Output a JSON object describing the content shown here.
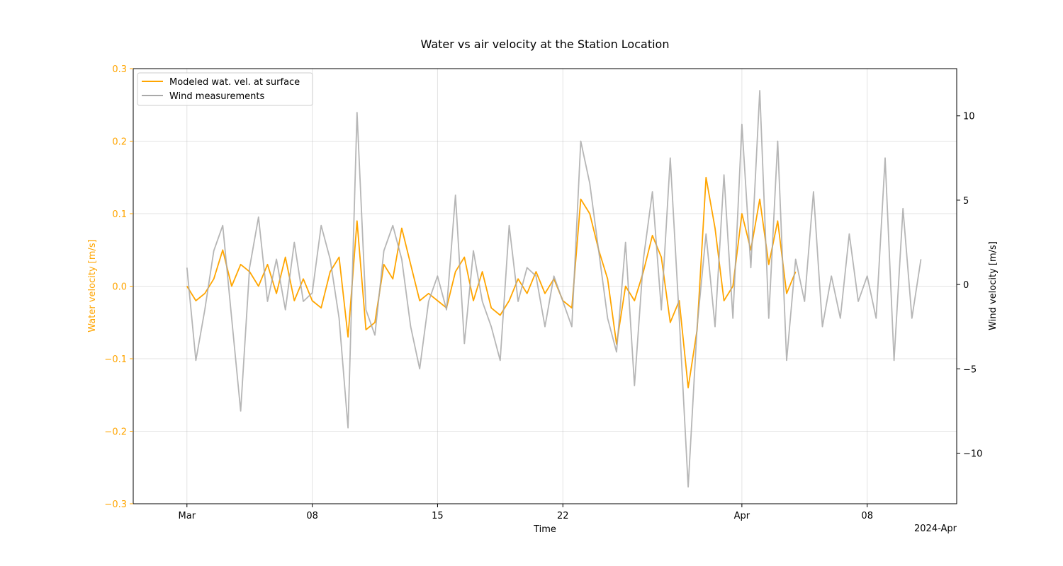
{
  "chart_data": {
    "type": "line",
    "title": "Water vs air velocity at the Station Location",
    "xlabel": "Time",
    "x_offset_label": "2024-Apr",
    "x_ticks": [
      {
        "date": "2024-03-01",
        "label": "Mar"
      },
      {
        "date": "2024-03-08",
        "label": "08"
      },
      {
        "date": "2024-03-15",
        "label": "15"
      },
      {
        "date": "2024-03-22",
        "label": "22"
      },
      {
        "date": "2024-04-01",
        "label": "Apr"
      },
      {
        "date": "2024-04-08",
        "label": "08"
      }
    ],
    "xlim": [
      "2024-02-27",
      "2024-04-13"
    ],
    "grid": true,
    "legend_position": "upper left",
    "y_left": {
      "label": "Water velocity [m/s]",
      "ylim": [
        -0.3,
        0.3
      ],
      "ticks": [
        -0.3,
        -0.2,
        -0.1,
        0.0,
        0.1,
        0.2,
        0.3
      ],
      "tick_labels": [
        "−0.3",
        "−0.2",
        "−0.1",
        "0.0",
        "0.1",
        "0.2",
        "0.3"
      ],
      "color": "#ffa500"
    },
    "y_right": {
      "label": "Wind velocity [m/s]",
      "ylim": [
        -13.0,
        12.8
      ],
      "ticks": [
        -10,
        -5,
        0,
        5,
        10
      ],
      "tick_labels": [
        "−10",
        "−5",
        "0",
        "5",
        "10"
      ],
      "color": "#000000"
    },
    "series": [
      {
        "name": "Modeled wat. vel. at surface",
        "axis": "left",
        "color": "#ffa500",
        "x": [
          "2024-03-01",
          "2024-03-01T12:00",
          "2024-03-02",
          "2024-03-02T12:00",
          "2024-03-03",
          "2024-03-03T12:00",
          "2024-03-04",
          "2024-03-04T12:00",
          "2024-03-05",
          "2024-03-05T12:00",
          "2024-03-06",
          "2024-03-06T12:00",
          "2024-03-07",
          "2024-03-07T12:00",
          "2024-03-08",
          "2024-03-08T12:00",
          "2024-03-09",
          "2024-03-09T12:00",
          "2024-03-10",
          "2024-03-10T12:00",
          "2024-03-11",
          "2024-03-11T12:00",
          "2024-03-12",
          "2024-03-12T12:00",
          "2024-03-13",
          "2024-03-13T12:00",
          "2024-03-14",
          "2024-03-14T12:00",
          "2024-03-15",
          "2024-03-15T12:00",
          "2024-03-16",
          "2024-03-16T12:00",
          "2024-03-17",
          "2024-03-17T12:00",
          "2024-03-18",
          "2024-03-18T12:00",
          "2024-03-19",
          "2024-03-19T12:00",
          "2024-03-20",
          "2024-03-20T12:00",
          "2024-03-21",
          "2024-03-21T12:00",
          "2024-03-22",
          "2024-03-22T12:00",
          "2024-03-23",
          "2024-03-23T12:00",
          "2024-03-24",
          "2024-03-24T12:00",
          "2024-03-25",
          "2024-03-25T12:00",
          "2024-03-26",
          "2024-03-26T12:00",
          "2024-03-27",
          "2024-03-27T12:00",
          "2024-03-28",
          "2024-03-28T12:00",
          "2024-03-29",
          "2024-03-29T12:00",
          "2024-03-30",
          "2024-03-30T12:00",
          "2024-03-31",
          "2024-03-31T12:00",
          "2024-04-01",
          "2024-04-01T12:00",
          "2024-04-02",
          "2024-04-02T12:00",
          "2024-04-03",
          "2024-04-03T12:00",
          "2024-04-04"
        ],
        "y": [
          0.0,
          -0.02,
          -0.01,
          0.01,
          0.05,
          0.0,
          0.03,
          0.02,
          0.0,
          0.03,
          -0.01,
          0.04,
          -0.02,
          0.01,
          -0.02,
          -0.03,
          0.02,
          0.04,
          -0.07,
          0.09,
          -0.06,
          -0.05,
          0.03,
          0.01,
          0.08,
          0.03,
          -0.02,
          -0.01,
          -0.02,
          -0.03,
          0.02,
          0.04,
          -0.02,
          0.02,
          -0.03,
          -0.04,
          -0.02,
          0.01,
          -0.01,
          0.02,
          -0.01,
          0.01,
          -0.02,
          -0.03,
          0.12,
          0.1,
          0.05,
          0.01,
          -0.08,
          0.0,
          -0.02,
          0.02,
          0.07,
          0.04,
          -0.05,
          -0.02,
          -0.14,
          -0.06,
          0.15,
          0.08,
          -0.02,
          0.0,
          0.1,
          0.05,
          0.12,
          0.03,
          0.09,
          -0.01,
          0.02
        ]
      },
      {
        "name": "Wind measurements",
        "axis": "right",
        "color": "#a9a9a9",
        "x": [
          "2024-03-01",
          "2024-03-01T12:00",
          "2024-03-02",
          "2024-03-02T12:00",
          "2024-03-03",
          "2024-03-03T12:00",
          "2024-03-04",
          "2024-03-04T12:00",
          "2024-03-05",
          "2024-03-05T12:00",
          "2024-03-06",
          "2024-03-06T12:00",
          "2024-03-07",
          "2024-03-07T12:00",
          "2024-03-08",
          "2024-03-08T12:00",
          "2024-03-09",
          "2024-03-09T12:00",
          "2024-03-10",
          "2024-03-10T12:00",
          "2024-03-11",
          "2024-03-11T12:00",
          "2024-03-12",
          "2024-03-12T12:00",
          "2024-03-13",
          "2024-03-13T12:00",
          "2024-03-14",
          "2024-03-14T12:00",
          "2024-03-15",
          "2024-03-15T12:00",
          "2024-03-16",
          "2024-03-16T12:00",
          "2024-03-17",
          "2024-03-17T12:00",
          "2024-03-18",
          "2024-03-18T12:00",
          "2024-03-19",
          "2024-03-19T12:00",
          "2024-03-20",
          "2024-03-20T12:00",
          "2024-03-21",
          "2024-03-21T12:00",
          "2024-03-22",
          "2024-03-22T12:00",
          "2024-03-23",
          "2024-03-23T12:00",
          "2024-03-24",
          "2024-03-24T12:00",
          "2024-03-25",
          "2024-03-25T12:00",
          "2024-03-26",
          "2024-03-26T12:00",
          "2024-03-27",
          "2024-03-27T12:00",
          "2024-03-28",
          "2024-03-28T12:00",
          "2024-03-29",
          "2024-03-29T12:00",
          "2024-03-30",
          "2024-03-30T12:00",
          "2024-03-31",
          "2024-03-31T12:00",
          "2024-04-01",
          "2024-04-01T12:00",
          "2024-04-02",
          "2024-04-02T12:00",
          "2024-04-03",
          "2024-04-03T12:00",
          "2024-04-04",
          "2024-04-04T12:00",
          "2024-04-05",
          "2024-04-05T12:00",
          "2024-04-06",
          "2024-04-06T12:00",
          "2024-04-07",
          "2024-04-07T12:00",
          "2024-04-08",
          "2024-04-08T12:00",
          "2024-04-09",
          "2024-04-09T12:00",
          "2024-04-10",
          "2024-04-10T12:00",
          "2024-04-11"
        ],
        "y": [
          1.0,
          -4.5,
          -1.5,
          2.0,
          3.5,
          -2.0,
          -7.5,
          1.0,
          4.0,
          -1.0,
          1.5,
          -1.5,
          2.5,
          -1.0,
          -0.5,
          3.5,
          1.5,
          -2.0,
          -8.5,
          10.2,
          -1.5,
          -3.0,
          2.0,
          3.5,
          1.5,
          -2.5,
          -5.0,
          -1.0,
          0.5,
          -1.5,
          5.3,
          -3.5,
          2.0,
          -1.0,
          -2.5,
          -4.5,
          3.5,
          -1.0,
          1.0,
          0.5,
          -2.5,
          0.5,
          -1.0,
          -2.5,
          8.5,
          6.0,
          2.0,
          -2.0,
          -4.0,
          2.5,
          -6.0,
          1.5,
          5.5,
          -1.5,
          7.5,
          -2.0,
          -12.0,
          -2.5,
          3.0,
          -2.5,
          6.5,
          -2.0,
          9.5,
          1.0,
          11.5,
          -2.0,
          8.5,
          -4.5,
          1.5,
          -1.0,
          5.5,
          -2.5,
          0.5,
          -2.0,
          3.0,
          -1.0,
          0.5,
          -2.0,
          7.5,
          -4.5,
          4.5,
          -2.0,
          1.5
        ]
      }
    ]
  }
}
